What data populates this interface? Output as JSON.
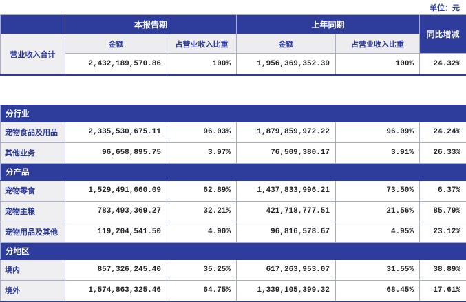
{
  "unit_label": "单位：元",
  "colors": {
    "header_blue": "#2e3d9c",
    "grid_line": "#a9aecb",
    "label_cell_bg": "#efeff2",
    "subheader_bg": "#ededef",
    "label_text": "#2b3a96",
    "number_text": "#222222"
  },
  "summary_table": {
    "period_headers": {
      "current": "本报告期",
      "prior": "上年同期"
    },
    "yoy_header": "同比增减",
    "sub_headers": {
      "amount": "金额",
      "ratio": "占营业收入比重"
    },
    "row": {
      "label": "营业收入合计",
      "cells": [
        "2,432,189,570.86",
        "100%",
        "1,956,369,352.39",
        "100%",
        "24.32%"
      ]
    }
  },
  "breakdown_table": {
    "sections": [
      {
        "title": "分行业",
        "rows": [
          {
            "label": "宠物食品及用品",
            "cells": [
              "2,335,530,675.11",
              "96.03%",
              "1,879,859,972.22",
              "96.09%",
              "24.24%"
            ]
          },
          {
            "label": "其他业务",
            "cells": [
              "96,658,895.75",
              "3.97%",
              "76,509,380.17",
              "3.91%",
              "26.33%"
            ]
          }
        ]
      },
      {
        "title": "分产品",
        "rows": [
          {
            "label": "宠物零食",
            "cells": [
              "1,529,491,660.09",
              "62.89%",
              "1,437,833,996.21",
              "73.50%",
              "6.37%"
            ]
          },
          {
            "label": "宠物主粮",
            "cells": [
              "783,493,369.27",
              "32.21%",
              "421,718,777.51",
              "21.56%",
              "85.79%"
            ]
          },
          {
            "label": "宠物用品及其他",
            "cells": [
              "119,204,541.50",
              "4.90%",
              "96,816,578.67",
              "4.95%",
              "23.12%"
            ]
          }
        ]
      },
      {
        "title": "分地区",
        "rows": [
          {
            "label": "境内",
            "cells": [
              "857,326,245.40",
              "35.25%",
              "617,263,953.07",
              "31.55%",
              "38.89%"
            ]
          },
          {
            "label": "境外",
            "cells": [
              "1,574,863,325.46",
              "64.75%",
              "1,339,105,399.32",
              "68.45%",
              "17.61%"
            ]
          }
        ]
      }
    ]
  }
}
